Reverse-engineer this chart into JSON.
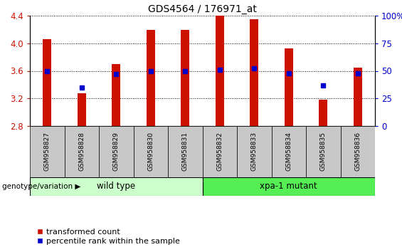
{
  "title": "GDS4564 / 176971_at",
  "samples": [
    "GSM958827",
    "GSM958828",
    "GSM958829",
    "GSM958830",
    "GSM958831",
    "GSM958832",
    "GSM958833",
    "GSM958834",
    "GSM958835",
    "GSM958836"
  ],
  "transformed_count": [
    4.06,
    3.27,
    3.7,
    4.19,
    4.19,
    4.4,
    4.35,
    3.93,
    3.18,
    3.65
  ],
  "percentile_rank": [
    50,
    35,
    47,
    50,
    50,
    51,
    52,
    48,
    37,
    48
  ],
  "ylim_left": [
    2.8,
    4.4
  ],
  "ylim_right": [
    0,
    100
  ],
  "yticks_left": [
    2.8,
    3.2,
    3.6,
    4.0,
    4.4
  ],
  "yticks_right": [
    0,
    25,
    50,
    75,
    100
  ],
  "ytick_labels_right": [
    "0",
    "25",
    "50",
    "75",
    "100%"
  ],
  "bar_color": "#cc1100",
  "dot_color": "#0000cc",
  "bar_bottom": 2.8,
  "n_wild_type": 5,
  "wild_type_label": "wild type",
  "mutant_label": "xpa-1 mutant",
  "legend_bar_label": "transformed count",
  "legend_dot_label": "percentile rank within the sample",
  "genotype_label": "genotype/variation",
  "wt_color": "#ccffcc",
  "mutant_color": "#55ee55",
  "xticklabel_bg": "#c8c8c8",
  "tick_color_left": "#cc1100",
  "tick_color_right": "#0000cc"
}
